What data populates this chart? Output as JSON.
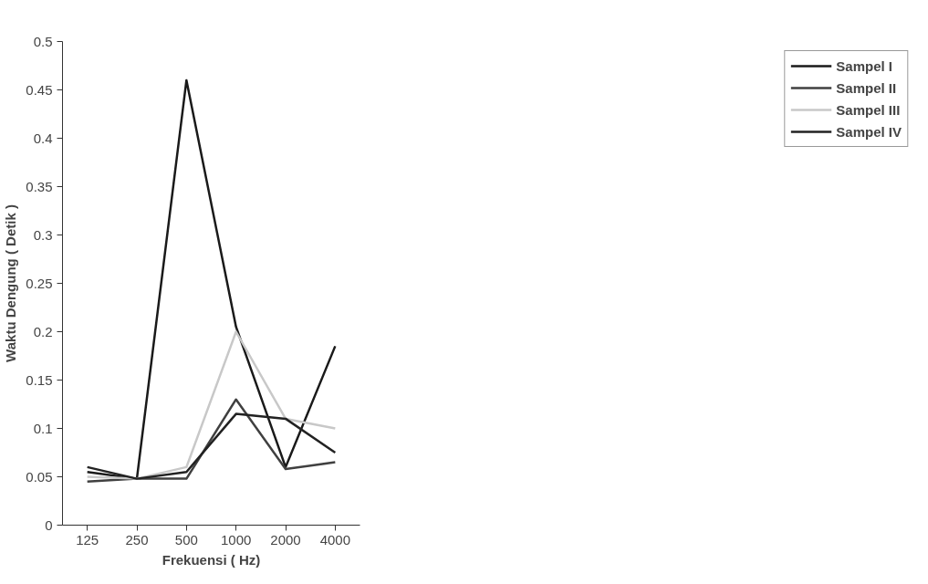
{
  "chart_data": {
    "type": "line",
    "xlabel": "Frekuensi ( Hz)",
    "ylabel": "Waktu Dengung ( Detik )",
    "categories": [
      "125",
      "250",
      "500",
      "1000",
      "2000",
      "4000"
    ],
    "ylim": [
      0,
      0.5
    ],
    "yticks": [
      0,
      0.05,
      0.1,
      0.15,
      0.2,
      0.25,
      0.3,
      0.35,
      0.4,
      0.45,
      0.5
    ],
    "grid": false,
    "legend": "right",
    "marker": "none",
    "line_style": "solid",
    "series": [
      {
        "name": "Sampel I",
        "color": "#1a1a1a",
        "values": [
          0.055,
          0.048,
          0.46,
          0.205,
          0.06,
          0.185
        ]
      },
      {
        "name": "Sampel II",
        "color": "#404040",
        "values": [
          0.045,
          0.048,
          0.048,
          0.13,
          0.058,
          0.065
        ]
      },
      {
        "name": "Sampel III",
        "color": "#c8c8c8",
        "values": [
          0.05,
          0.048,
          0.06,
          0.2,
          0.11,
          0.1
        ]
      },
      {
        "name": "Sampel IV",
        "color": "#222222",
        "values": [
          0.06,
          0.048,
          0.055,
          0.115,
          0.11,
          0.075
        ]
      }
    ]
  }
}
